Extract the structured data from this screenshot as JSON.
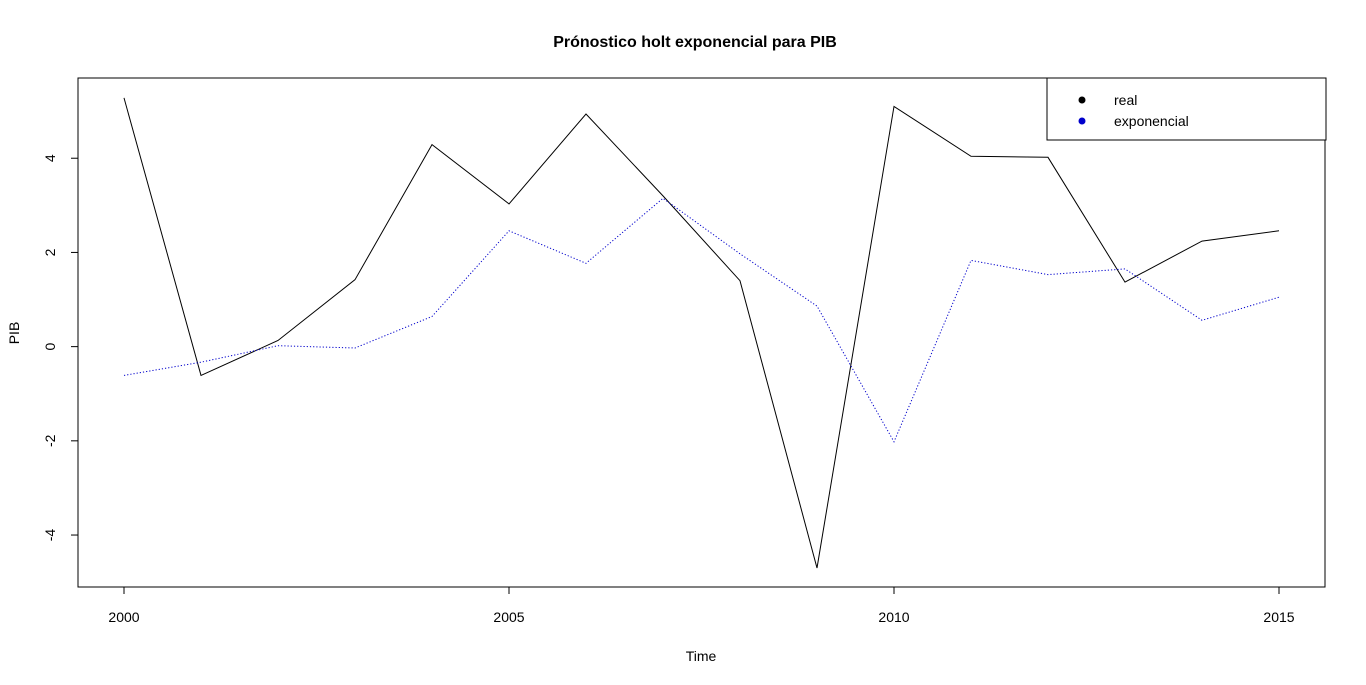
{
  "chart_data": {
    "type": "line",
    "title": "Prónostico holt exponencial para PIB",
    "xlabel": "Time",
    "ylabel": "PIB",
    "x": [
      2000,
      2001,
      2002,
      2003,
      2004,
      2005,
      2006,
      2007,
      2008,
      2009,
      2010,
      2011,
      2012,
      2013,
      2014,
      2015
    ],
    "xlim": [
      2000,
      2015
    ],
    "ylim": [
      -4.7,
      5.3
    ],
    "xticks": [
      2000,
      2005,
      2010,
      2015
    ],
    "xtick_labels": [
      "2000",
      "2005",
      "2010",
      "2015"
    ],
    "yticks": [
      -4,
      -2,
      0,
      2,
      4
    ],
    "ytick_labels": [
      "-4",
      "-2",
      "0",
      "2",
      "4"
    ],
    "grid": false,
    "legend_position": "top-right",
    "series": [
      {
        "name": "real",
        "color": "#000000",
        "line_style": "solid",
        "values": [
          5.28,
          -0.61,
          0.13,
          1.42,
          4.29,
          3.03,
          4.94,
          3.2,
          1.4,
          -4.7,
          5.1,
          4.04,
          4.02,
          1.37,
          2.24,
          2.46
        ]
      },
      {
        "name": "exponencial",
        "color": "#0000cc",
        "line_style": "dotted",
        "values": [
          -0.61,
          -0.33,
          0.02,
          -0.03,
          0.64,
          2.46,
          1.77,
          3.15,
          1.97,
          0.86,
          -2.02,
          1.83,
          1.53,
          1.65,
          0.56,
          1.05
        ]
      }
    ]
  }
}
